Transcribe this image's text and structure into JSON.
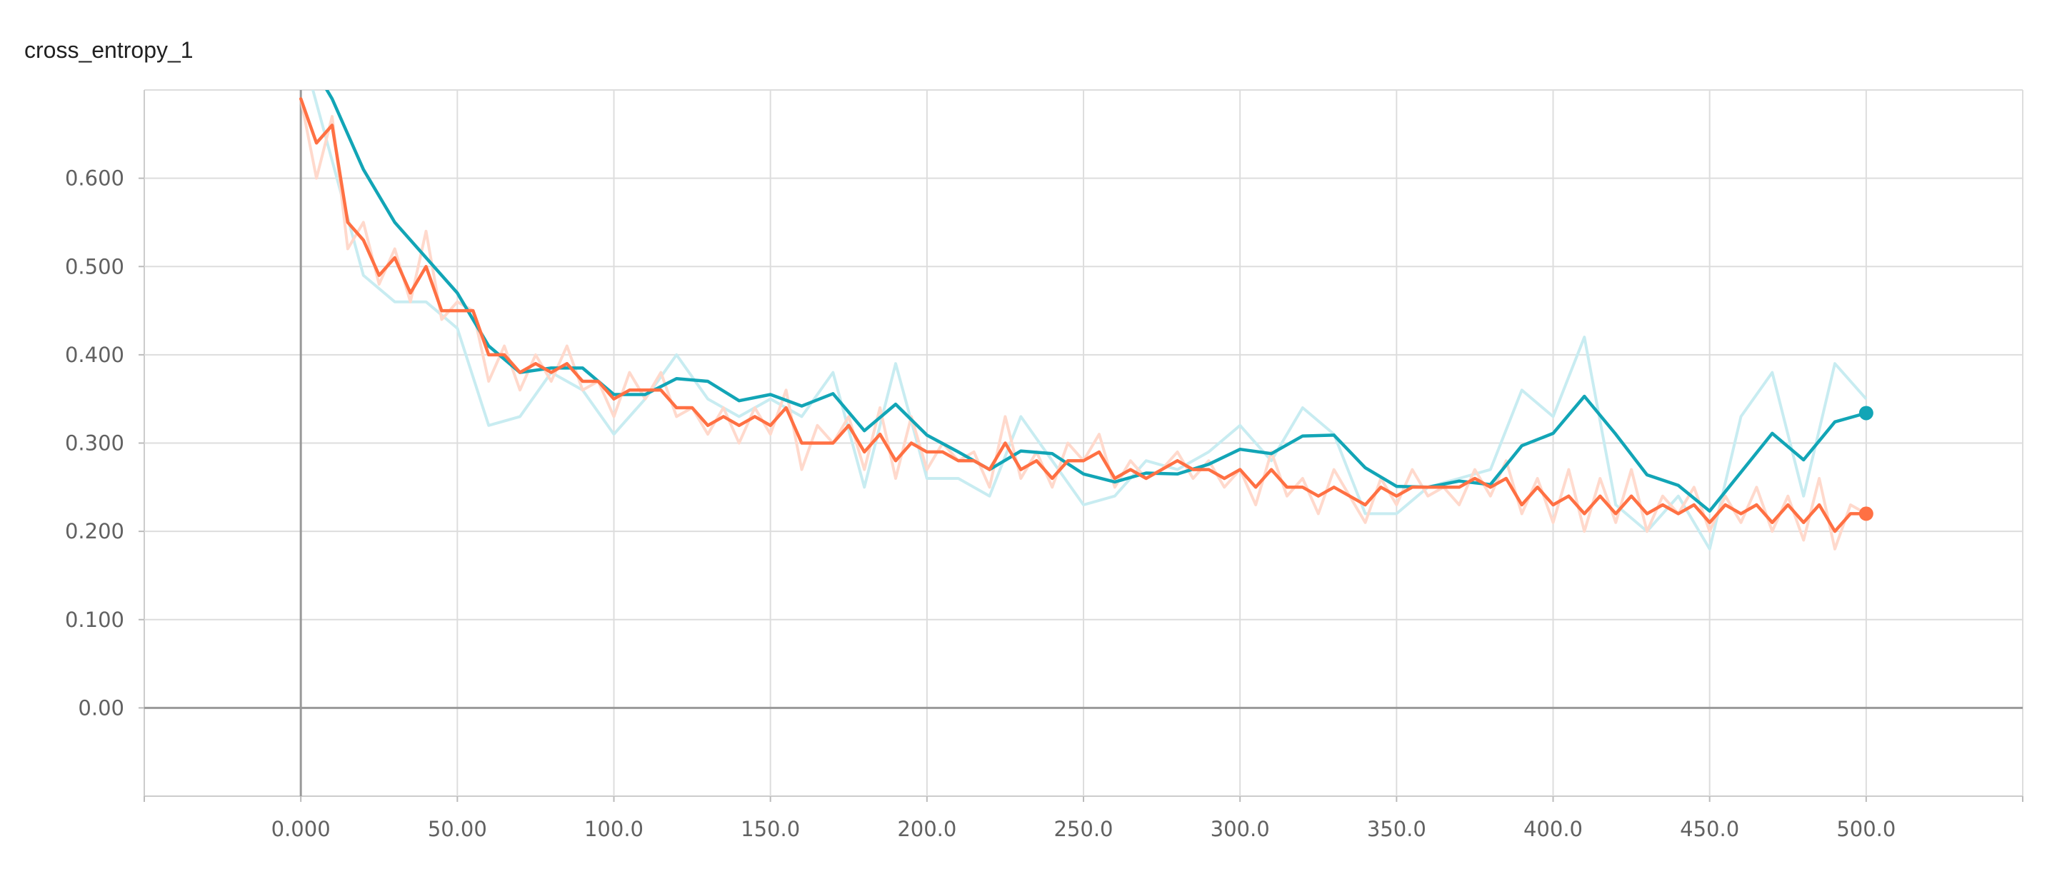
{
  "chart_data": {
    "type": "line",
    "title": "cross_entropy_1",
    "xlabel": "",
    "ylabel": "",
    "xlim": [
      -50,
      550
    ],
    "ylim": [
      -0.1,
      0.7
    ],
    "grid": true,
    "x_ticks": [
      0,
      50,
      100,
      150,
      200,
      250,
      300,
      350,
      400,
      450,
      500
    ],
    "x_tick_labels": [
      "0.000",
      "50.00",
      "100.0",
      "150.0",
      "200.0",
      "250.0",
      "300.0",
      "350.0",
      "400.0",
      "450.0",
      "500.0"
    ],
    "y_ticks": [
      0,
      0.1,
      0.2,
      0.3,
      0.4,
      0.5,
      0.6
    ],
    "y_tick_labels": [
      "0.00",
      "0.100",
      "0.200",
      "0.300",
      "0.400",
      "0.500",
      "0.600"
    ],
    "series": [
      {
        "color": "#12a5b6",
        "raw_color": "#c8ecf1",
        "x": [
          0,
          10,
          20,
          30,
          40,
          50,
          60,
          70,
          80,
          90,
          100,
          110,
          120,
          130,
          140,
          150,
          160,
          170,
          180,
          190,
          200,
          210,
          220,
          230,
          240,
          250,
          260,
          270,
          280,
          290,
          300,
          310,
          320,
          330,
          340,
          350,
          360,
          370,
          380,
          390,
          400,
          410,
          420,
          430,
          440,
          450,
          460,
          470,
          480,
          490,
          500
        ],
        "raw": [
          0.75,
          0.62,
          0.49,
          0.46,
          0.46,
          0.43,
          0.32,
          0.33,
          0.38,
          0.36,
          0.31,
          0.35,
          0.4,
          0.35,
          0.33,
          0.35,
          0.33,
          0.38,
          0.25,
          0.39,
          0.26,
          0.26,
          0.24,
          0.33,
          0.28,
          0.23,
          0.24,
          0.28,
          0.27,
          0.29,
          0.32,
          0.28,
          0.34,
          0.31,
          0.22,
          0.22,
          0.25,
          0.26,
          0.27,
          0.36,
          0.33,
          0.42,
          0.23,
          0.2,
          0.24,
          0.18,
          0.33,
          0.38,
          0.24,
          0.39,
          0.35
        ],
        "smoothed": [
          0.75,
          0.69,
          0.61,
          0.55,
          0.51,
          0.47,
          0.41,
          0.38,
          0.385,
          0.385,
          0.355,
          0.355,
          0.373,
          0.37,
          0.348,
          0.355,
          0.342,
          0.356,
          0.314,
          0.344,
          0.309,
          0.29,
          0.27,
          0.291,
          0.288,
          0.265,
          0.256,
          0.266,
          0.265,
          0.276,
          0.293,
          0.288,
          0.308,
          0.309,
          0.272,
          0.251,
          0.25,
          0.257,
          0.253,
          0.297,
          0.311,
          0.353,
          0.31,
          0.264,
          0.252,
          0.223,
          0.267,
          0.311,
          0.281,
          0.324,
          0.334
        ]
      },
      {
        "color": "#ff7043",
        "raw_color": "#ffd9cc",
        "x": [
          0,
          5,
          10,
          15,
          20,
          25,
          30,
          35,
          40,
          45,
          50,
          55,
          60,
          65,
          70,
          75,
          80,
          85,
          90,
          95,
          100,
          105,
          110,
          115,
          120,
          125,
          130,
          135,
          140,
          145,
          150,
          155,
          160,
          165,
          170,
          175,
          180,
          185,
          190,
          195,
          200,
          205,
          210,
          215,
          220,
          225,
          230,
          235,
          240,
          245,
          250,
          255,
          260,
          265,
          270,
          275,
          280,
          285,
          290,
          295,
          300,
          305,
          310,
          315,
          320,
          325,
          330,
          335,
          340,
          345,
          350,
          355,
          360,
          365,
          370,
          375,
          380,
          385,
          390,
          395,
          400,
          405,
          410,
          415,
          420,
          425,
          430,
          435,
          440,
          445,
          450,
          455,
          460,
          465,
          470,
          475,
          480,
          485,
          490,
          495,
          500
        ],
        "raw": [
          0.69,
          0.6,
          0.67,
          0.52,
          0.55,
          0.48,
          0.52,
          0.46,
          0.54,
          0.44,
          0.46,
          0.45,
          0.37,
          0.41,
          0.36,
          0.4,
          0.37,
          0.41,
          0.36,
          0.37,
          0.33,
          0.38,
          0.35,
          0.38,
          0.33,
          0.34,
          0.31,
          0.34,
          0.3,
          0.34,
          0.31,
          0.36,
          0.27,
          0.32,
          0.3,
          0.33,
          0.27,
          0.34,
          0.26,
          0.33,
          0.27,
          0.3,
          0.28,
          0.29,
          0.25,
          0.33,
          0.26,
          0.29,
          0.25,
          0.3,
          0.28,
          0.31,
          0.25,
          0.28,
          0.26,
          0.27,
          0.29,
          0.26,
          0.28,
          0.25,
          0.27,
          0.23,
          0.29,
          0.24,
          0.26,
          0.22,
          0.27,
          0.24,
          0.21,
          0.26,
          0.23,
          0.27,
          0.24,
          0.25,
          0.23,
          0.27,
          0.24,
          0.28,
          0.22,
          0.26,
          0.21,
          0.27,
          0.2,
          0.26,
          0.21,
          0.27,
          0.2,
          0.24,
          0.22,
          0.25,
          0.2,
          0.24,
          0.21,
          0.25,
          0.2,
          0.24,
          0.19,
          0.26,
          0.18,
          0.23,
          0.22
        ],
        "smoothed": [
          0.69,
          0.64,
          0.66,
          0.55,
          0.53,
          0.49,
          0.51,
          0.47,
          0.5,
          0.45,
          0.45,
          0.45,
          0.4,
          0.4,
          0.38,
          0.39,
          0.38,
          0.39,
          0.37,
          0.37,
          0.35,
          0.36,
          0.36,
          0.36,
          0.34,
          0.34,
          0.32,
          0.33,
          0.32,
          0.33,
          0.32,
          0.34,
          0.3,
          0.3,
          0.3,
          0.32,
          0.29,
          0.31,
          0.28,
          0.3,
          0.29,
          0.29,
          0.28,
          0.28,
          0.27,
          0.3,
          0.27,
          0.28,
          0.26,
          0.28,
          0.28,
          0.29,
          0.26,
          0.27,
          0.26,
          0.27,
          0.28,
          0.27,
          0.27,
          0.26,
          0.27,
          0.25,
          0.27,
          0.25,
          0.25,
          0.24,
          0.25,
          0.24,
          0.23,
          0.25,
          0.24,
          0.25,
          0.25,
          0.25,
          0.25,
          0.26,
          0.25,
          0.26,
          0.23,
          0.25,
          0.23,
          0.24,
          0.22,
          0.24,
          0.22,
          0.24,
          0.22,
          0.23,
          0.22,
          0.23,
          0.21,
          0.23,
          0.22,
          0.23,
          0.21,
          0.23,
          0.21,
          0.23,
          0.2,
          0.22,
          0.22
        ]
      }
    ]
  }
}
